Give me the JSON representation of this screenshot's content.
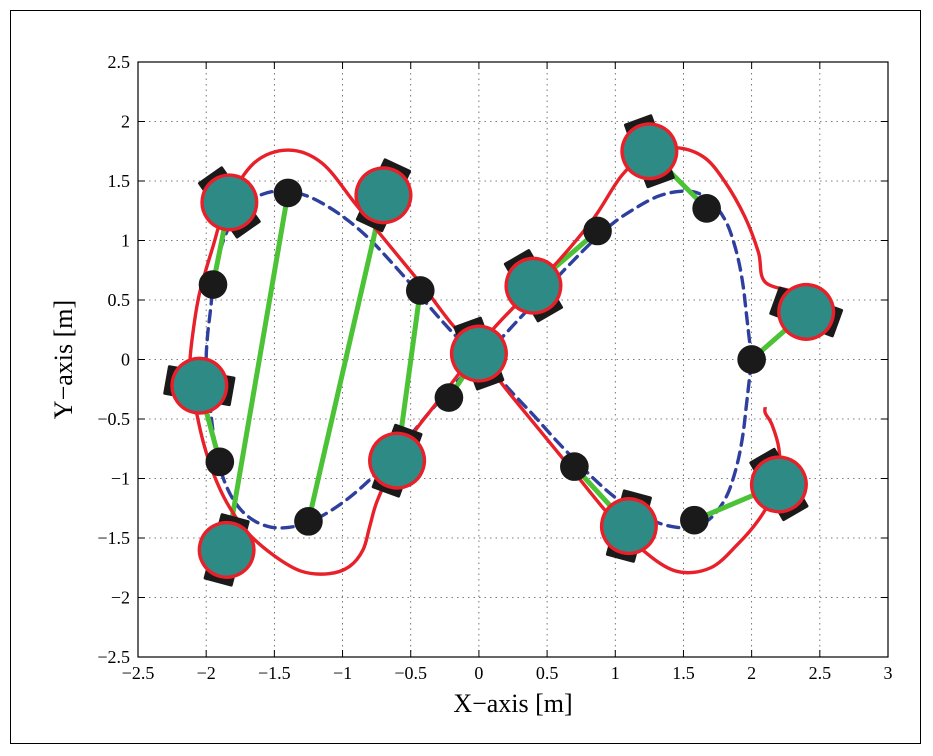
{
  "chart_data": {
    "type": "line",
    "title": "",
    "xlabel": "X−axis [m]",
    "ylabel": "Y−axis [m]",
    "xlim": [
      -2.5,
      3
    ],
    "ylim": [
      -2.5,
      2.5
    ],
    "grid": true,
    "x_ticks": [
      -2.5,
      -2,
      -1.5,
      -1,
      -0.5,
      0,
      0.5,
      1,
      1.5,
      2,
      2.5,
      3
    ],
    "y_ticks": [
      -2.5,
      -2,
      -1.5,
      -1,
      -0.5,
      0,
      0.5,
      1,
      1.5,
      2,
      2.5
    ],
    "x_tick_labels": [
      "−2.5",
      "−2",
      "−1.5",
      "−1",
      "−0.5",
      "0",
      "0.5",
      "1",
      "1.5",
      "2",
      "2.5",
      "3"
    ],
    "y_tick_labels": [
      "−2.5",
      "−2",
      "−1.5",
      "−1",
      "−0.5",
      "0",
      "0.5",
      "1",
      "1.5",
      "2",
      "2.5"
    ],
    "colors": {
      "reference": "#2f3f9e",
      "robot_path": "#e8202a",
      "link": "#4cc236",
      "robot_body": "#2e8a85",
      "robot_outline": "#e8202a",
      "wheel": "#1a1a1a",
      "marker": "#1a1a1a"
    },
    "series": [
      {
        "style": "dashed",
        "x": [
          2.0,
          1.98,
          1.96,
          1.94,
          1.91,
          1.87,
          1.82,
          1.75,
          1.67,
          1.57,
          1.45,
          1.31,
          1.16,
          1.0,
          0.85,
          0.7,
          0.55,
          0.41,
          0.27,
          0.14,
          0.0,
          -0.13,
          -0.26,
          -0.39,
          -0.52,
          -0.66,
          -0.8,
          -0.95,
          -1.1,
          -1.25,
          -1.39,
          -1.52,
          -1.64,
          -1.74,
          -1.82,
          -1.88,
          -1.92,
          -1.95,
          -1.97,
          -1.99,
          -2.0,
          -1.99,
          -1.97,
          -1.95,
          -1.92,
          -1.88,
          -1.82,
          -1.74,
          -1.64,
          -1.52,
          -1.39,
          -1.25,
          -1.1,
          -0.95,
          -0.8,
          -0.66,
          -0.52,
          -0.39,
          -0.26,
          -0.13,
          0.0,
          0.14,
          0.27,
          0.41,
          0.55,
          0.7,
          0.85,
          1.0,
          1.16,
          1.31,
          1.45,
          1.57,
          1.67,
          1.75,
          1.82,
          1.87,
          1.91,
          1.94,
          1.96,
          1.98,
          2.0
        ],
        "y": [
          0.0,
          0.2,
          0.4,
          0.6,
          0.8,
          0.98,
          1.14,
          1.27,
          1.36,
          1.41,
          1.41,
          1.37,
          1.28,
          1.16,
          1.01,
          0.84,
          0.66,
          0.48,
          0.31,
          0.15,
          0.0,
          -0.15,
          -0.31,
          -0.48,
          -0.66,
          -0.84,
          -1.01,
          -1.16,
          -1.28,
          -1.37,
          -1.41,
          -1.41,
          -1.36,
          -1.27,
          -1.14,
          -0.98,
          -0.8,
          -0.6,
          -0.4,
          -0.2,
          0.0,
          0.2,
          0.4,
          0.6,
          0.8,
          0.98,
          1.14,
          1.27,
          1.36,
          1.41,
          1.41,
          1.37,
          1.28,
          1.16,
          1.01,
          0.84,
          0.66,
          0.48,
          0.31,
          0.15,
          0.0,
          -0.15,
          -0.31,
          -0.48,
          -0.66,
          -0.84,
          -1.01,
          -1.16,
          -1.28,
          -1.37,
          -1.41,
          -1.41,
          -1.36,
          -1.27,
          -1.14,
          -0.98,
          -0.8,
          -0.6,
          -0.4,
          -0.2,
          0.0
        ]
      },
      {
        "style": "solid",
        "x": [
          2.4,
          2.35,
          2.1,
          2.05,
          1.95,
          1.8,
          1.65,
          1.45,
          1.25,
          1.05,
          0.85,
          0.6,
          0.35,
          0.1,
          -0.1,
          -0.3,
          -0.5,
          -0.65,
          -0.75,
          -0.8,
          -0.85,
          -0.95,
          -1.1,
          -1.3,
          -1.5,
          -1.7,
          -1.85,
          -1.95,
          -2.02,
          -2.07,
          -2.1,
          -2.12,
          -2.1,
          -2.05,
          -1.95,
          -1.85,
          -1.65,
          -1.4,
          -1.15,
          -0.9,
          -0.65,
          -0.4,
          -0.2,
          0.0,
          0.2,
          0.45,
          0.7,
          0.95,
          1.2,
          1.45,
          1.7,
          1.9,
          2.05,
          2.15,
          2.2,
          2.2,
          2.15,
          2.1,
          2.1
        ],
        "y": [
          0.4,
          0.55,
          0.65,
          0.9,
          1.2,
          1.5,
          1.7,
          1.78,
          1.74,
          1.55,
          1.2,
          0.85,
          0.55,
          0.25,
          -0.05,
          -0.35,
          -0.65,
          -0.95,
          -1.2,
          -1.4,
          -1.6,
          -1.74,
          -1.8,
          -1.78,
          -1.65,
          -1.45,
          -1.2,
          -0.95,
          -0.7,
          -0.45,
          -0.25,
          -0.05,
          0.2,
          0.55,
          0.95,
          1.3,
          1.65,
          1.76,
          1.65,
          1.3,
          0.95,
          0.6,
          0.3,
          0.05,
          -0.25,
          -0.6,
          -0.95,
          -1.3,
          -1.6,
          -1.78,
          -1.75,
          -1.55,
          -1.35,
          -1.15,
          -0.95,
          -0.75,
          -0.55,
          -0.45,
          -0.4
        ]
      }
    ],
    "robots": [
      {
        "x": 2.4,
        "y": 0.4,
        "theta": 70
      },
      {
        "x": 2.2,
        "y": -1.05,
        "theta": 30
      },
      {
        "x": 1.1,
        "y": -1.4,
        "theta": -15
      },
      {
        "x": 1.25,
        "y": 1.75,
        "theta": 20
      },
      {
        "x": 0.4,
        "y": 0.62,
        "theta": 30
      },
      {
        "x": 0.0,
        "y": 0.05,
        "theta": 20
      },
      {
        "x": -0.6,
        "y": -0.85,
        "theta": -20
      },
      {
        "x": -0.7,
        "y": 1.38,
        "theta": -25
      },
      {
        "x": -1.85,
        "y": -1.6,
        "theta": -15
      },
      {
        "x": -2.05,
        "y": -0.22,
        "theta": 80
      },
      {
        "x": -1.83,
        "y": 1.32,
        "theta": 35
      }
    ],
    "markers": [
      {
        "x": 2.0,
        "y": 0.0
      },
      {
        "x": 1.58,
        "y": -1.35
      },
      {
        "x": 0.7,
        "y": -0.9
      },
      {
        "x": 1.67,
        "y": 1.27
      },
      {
        "x": 0.87,
        "y": 1.08
      },
      {
        "x": -0.22,
        "y": -0.32
      },
      {
        "x": -0.43,
        "y": 0.58
      },
      {
        "x": -1.25,
        "y": -1.36
      },
      {
        "x": -1.4,
        "y": 1.4
      },
      {
        "x": -1.9,
        "y": -0.86
      },
      {
        "x": -1.95,
        "y": 0.63
      }
    ]
  }
}
